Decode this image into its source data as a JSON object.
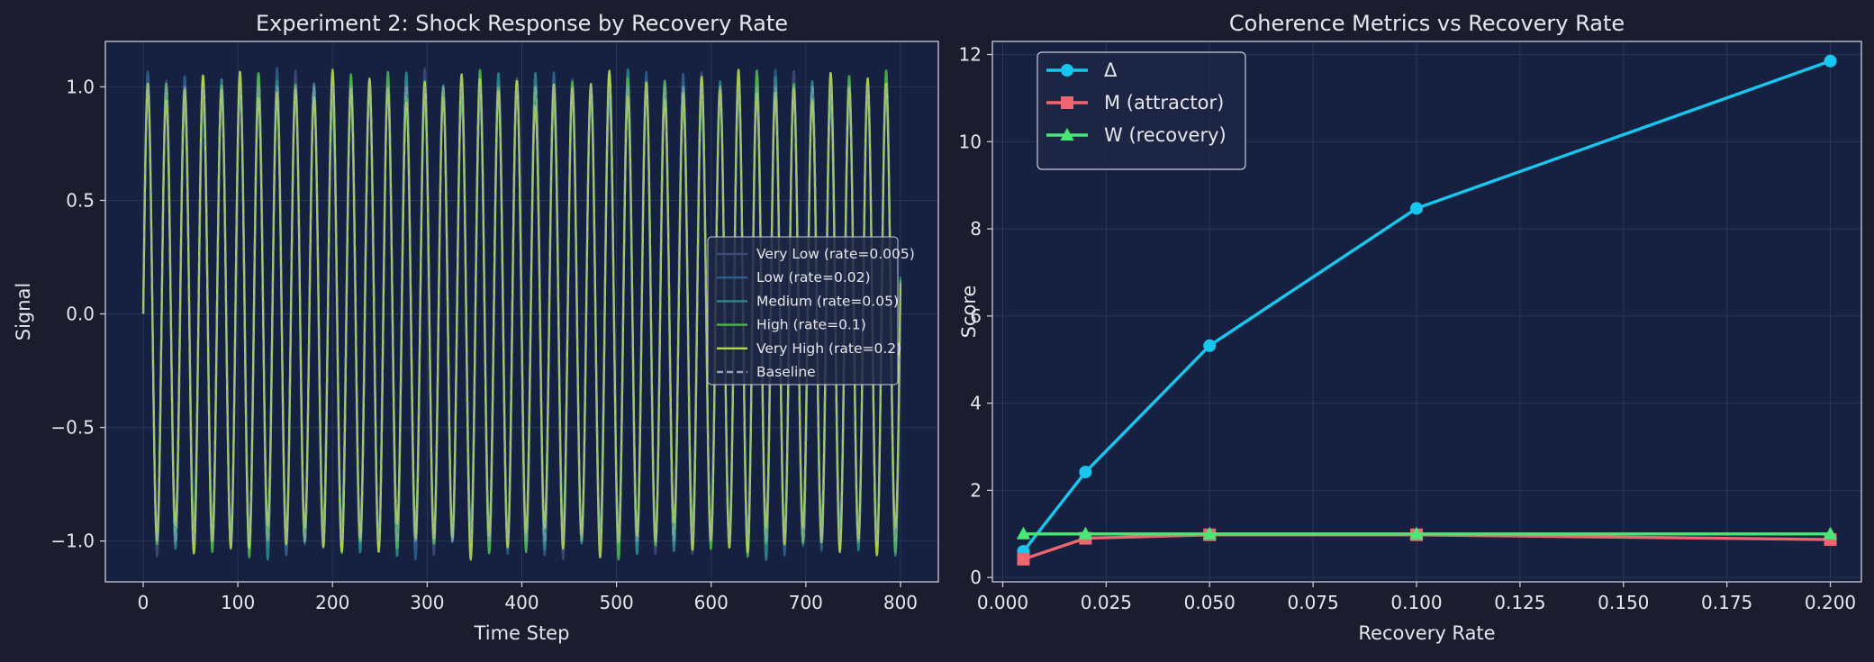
{
  "theme": {
    "figure_bg": "#1b1c2e",
    "axes_bg": "#162040",
    "text": "#e6e6ec",
    "grid": "#2a3656",
    "spine": "#c9cbd6"
  },
  "chart_data": [
    {
      "type": "line",
      "title": "Experiment 2: Shock Response by Recovery Rate",
      "xlabel": "Time Step",
      "ylabel": "Signal",
      "xlim": [
        -40,
        840
      ],
      "ylim": [
        -1.18,
        1.2
      ],
      "xticks": [
        0,
        100,
        200,
        300,
        400,
        500,
        600,
        700,
        800
      ],
      "xtick_labels": [
        "0",
        "100",
        "200",
        "300",
        "400",
        "500",
        "600",
        "700",
        "800"
      ],
      "yticks": [
        -1.0,
        -0.5,
        0.0,
        0.5,
        1.0
      ],
      "ytick_labels": [
        "−1.0",
        "−0.5",
        "0.0",
        "0.5",
        "1.0"
      ],
      "grid": true,
      "legend_position": "center-right",
      "signal": {
        "x_range": [
          0,
          800
        ],
        "period": 19.5,
        "amplitude": 1.0
      },
      "series": [
        {
          "name": "Very Low (rate=0.005)",
          "color": "#3d4a78",
          "dash": false
        },
        {
          "name": "Low (rate=0.02)",
          "color": "#2f5f8c",
          "dash": false
        },
        {
          "name": "Medium (rate=0.05)",
          "color": "#2a8a8a",
          "dash": false
        },
        {
          "name": "High (rate=0.1)",
          "color": "#4cb64c",
          "dash": false
        },
        {
          "name": "Very High (rate=0.2)",
          "color": "#b3d94a",
          "dash": false
        },
        {
          "name": "Baseline",
          "color": "#9aa0b8",
          "dash": true
        }
      ]
    },
    {
      "type": "line",
      "title": "Coherence Metrics vs Recovery Rate",
      "xlabel": "Recovery Rate",
      "ylabel": "Score",
      "xlim": [
        -0.0025,
        0.2075
      ],
      "ylim": [
        -0.1,
        12.3
      ],
      "xticks": [
        0.0,
        0.025,
        0.05,
        0.075,
        0.1,
        0.125,
        0.15,
        0.175,
        0.2
      ],
      "xtick_labels": [
        "0.000",
        "0.025",
        "0.050",
        "0.075",
        "0.100",
        "0.125",
        "0.150",
        "0.175",
        "0.200"
      ],
      "yticks": [
        0,
        2,
        4,
        6,
        8,
        10,
        12
      ],
      "ytick_labels": [
        "0",
        "2",
        "4",
        "6",
        "8",
        "10",
        "12"
      ],
      "grid": true,
      "legend_position": "top-left",
      "x": [
        0.005,
        0.02,
        0.05,
        0.1,
        0.2
      ],
      "series": [
        {
          "name": "Δ",
          "color": "#16c8f0",
          "marker": "circle",
          "values": [
            0.6,
            2.42,
            5.32,
            8.47,
            11.85
          ]
        },
        {
          "name": "M (attractor)",
          "color": "#f06670",
          "marker": "square",
          "values": [
            0.42,
            0.9,
            0.98,
            0.98,
            0.87
          ]
        },
        {
          "name": "W (recovery)",
          "color": "#47e873",
          "marker": "triangle",
          "values": [
            1.0,
            1.0,
            1.0,
            1.0,
            1.0
          ]
        }
      ]
    }
  ]
}
